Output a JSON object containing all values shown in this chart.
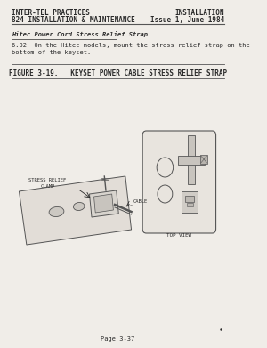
{
  "bg_color": "#f0ede8",
  "header_left_line1": "INTER-TEL PRACTICES",
  "header_left_line2": "824 INSTALLATION & MAINTENANCE",
  "header_right_line1": "INSTALLATION",
  "header_right_line2": "Issue 1, June 1984",
  "section_title": "Hitec Power Cord Stress Relief Strap",
  "body_text_1": "6.02  On the Hitec models, mount the stress relief strap on the",
  "body_text_2": "bottom of the keyset.",
  "figure_title": "FIGURE 3-19.   KEYSET POWER CABLE STRESS RELIEF STRAP",
  "label_stress": "STRESS RELIEF\nCLAMP",
  "label_cable": "CABLE",
  "label_top_view": "TOP VIEW",
  "page_footer": "Page 3-37",
  "text_color": "#2a2a2a",
  "line_color": "#555555",
  "font_size_header": 5.5,
  "font_size_body": 5.0,
  "font_size_figure": 5.5,
  "font_size_footer": 5.0,
  "font_size_label": 4.0
}
